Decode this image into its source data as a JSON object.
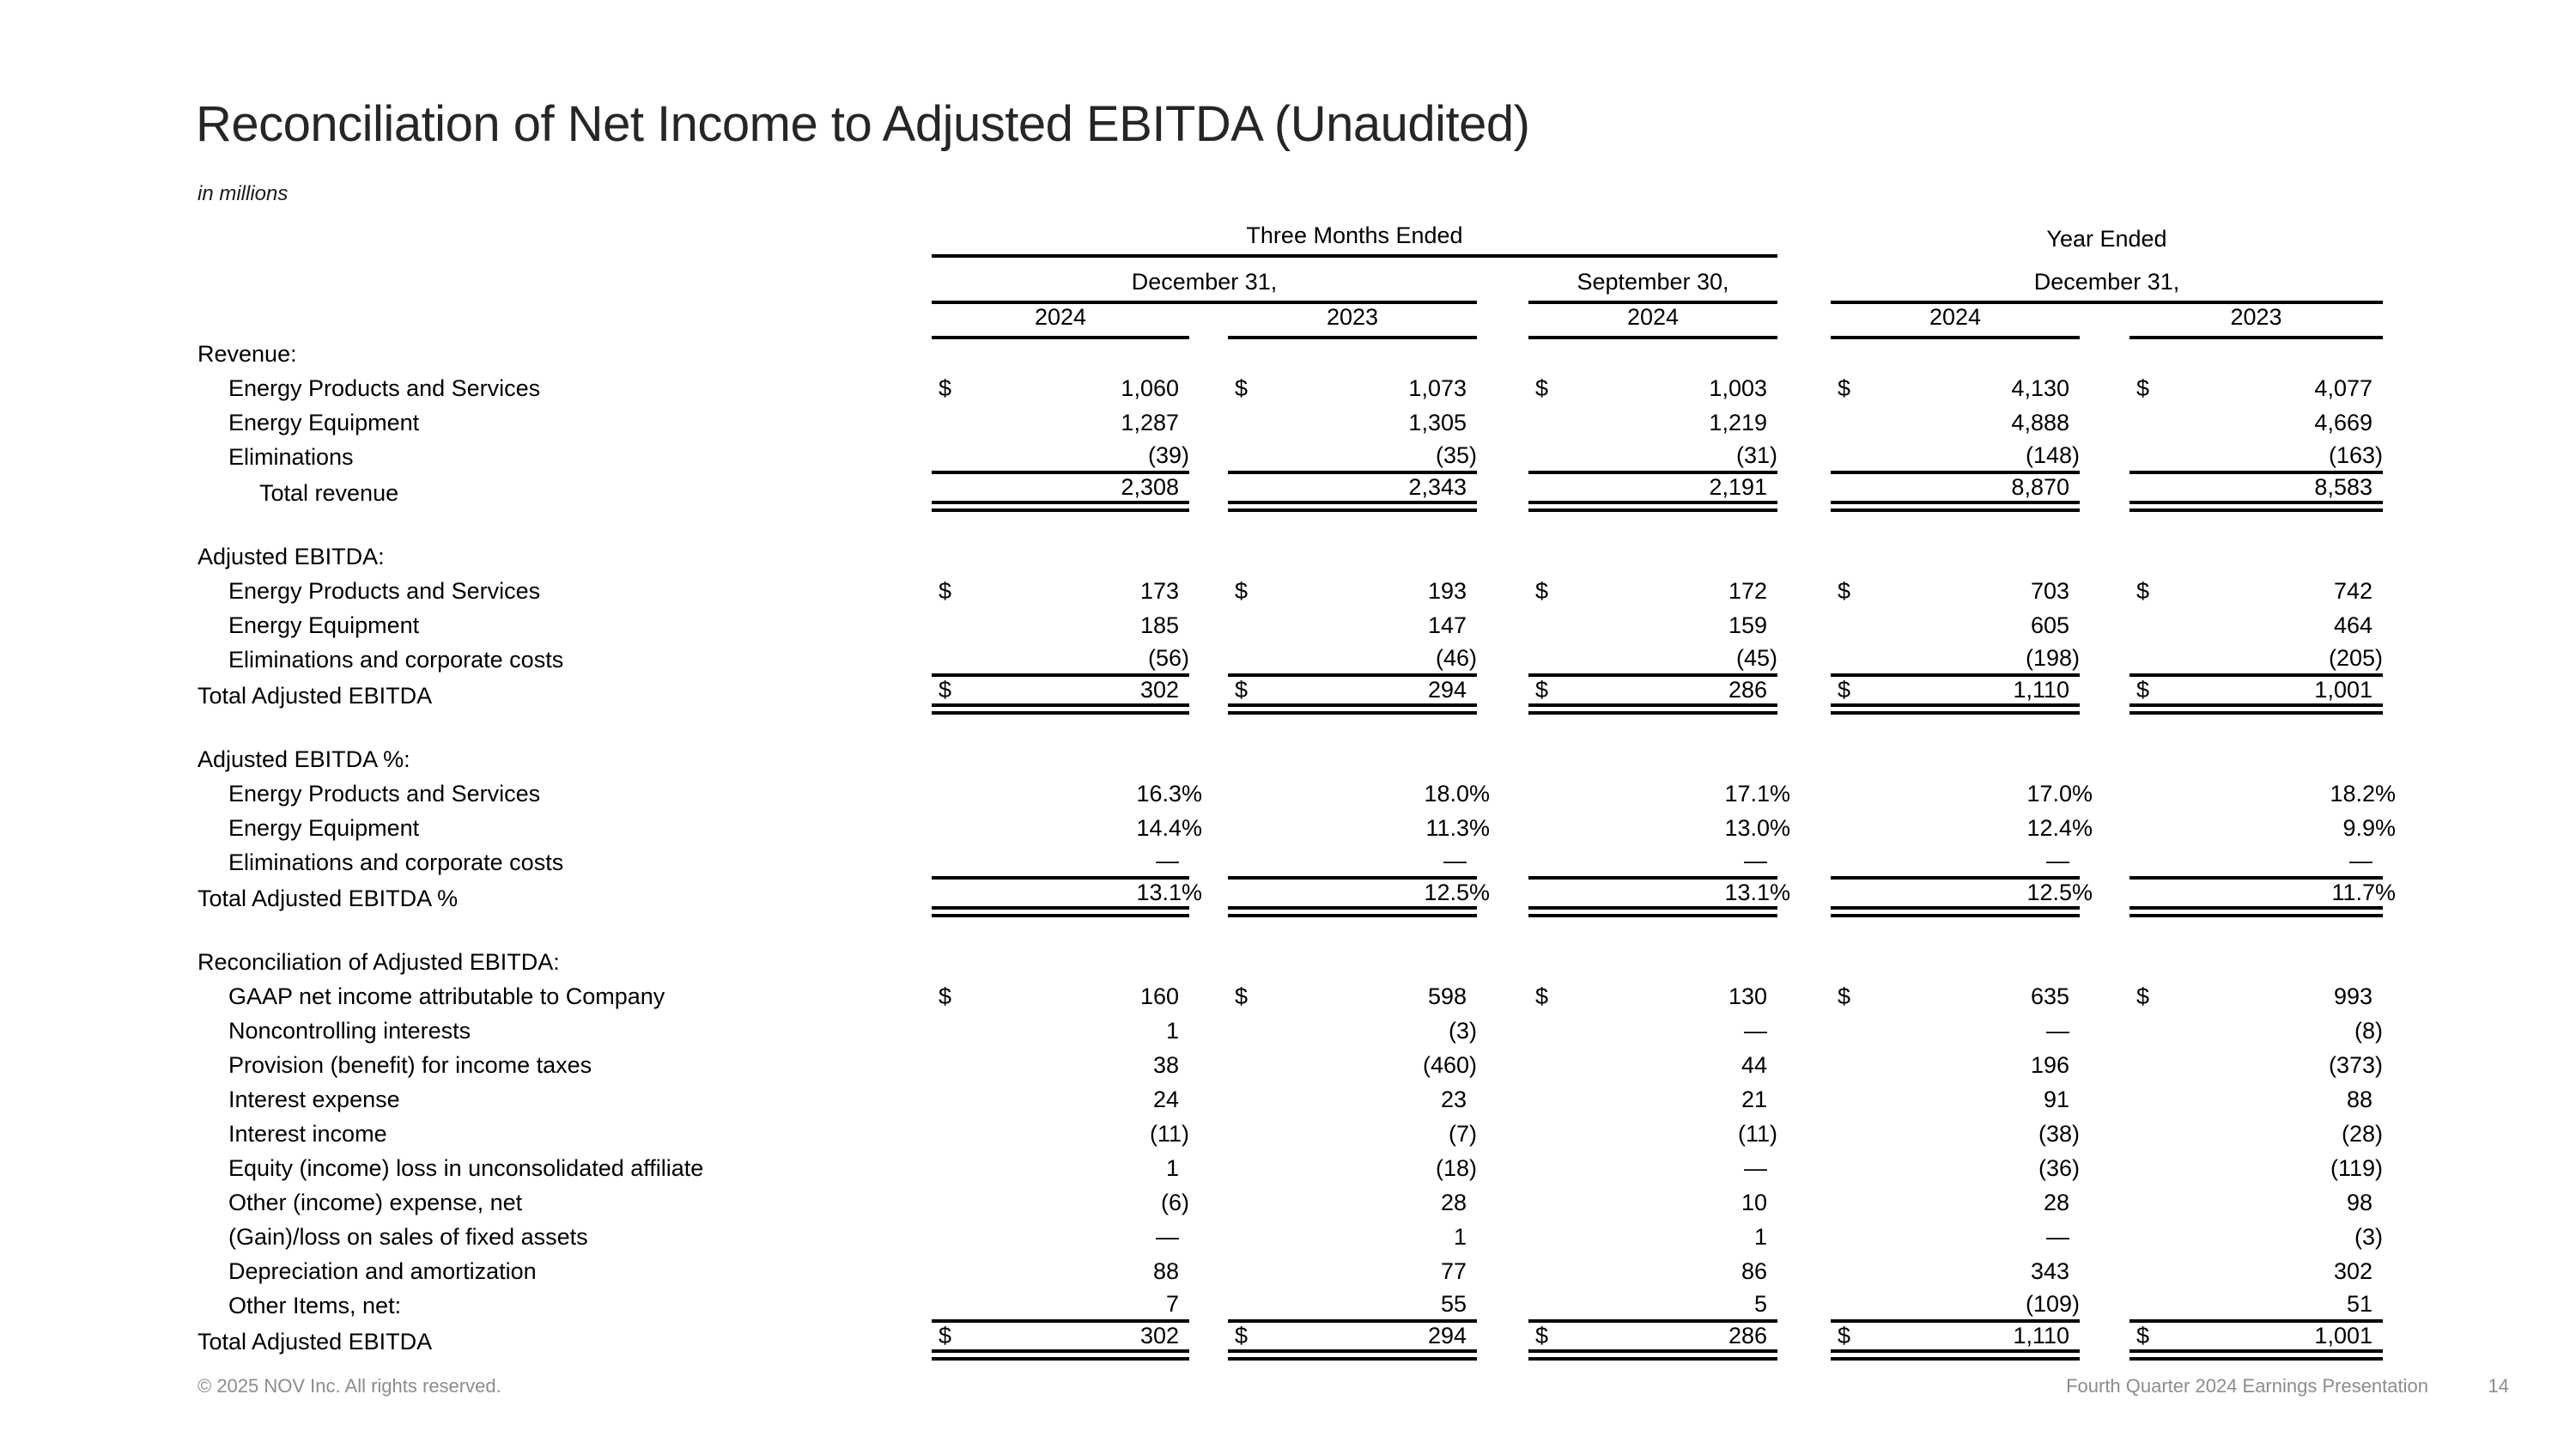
{
  "title": "Reconciliation of Net Income to Adjusted EBITDA (Unaudited)",
  "unit_note": "in millions",
  "header": {
    "group_three_months": "Three Months Ended",
    "group_year_ended": "Year Ended",
    "sub_dec31_quarters": "December 31,",
    "sub_sep30": "September 30,",
    "sub_dec31_years": "December 31,",
    "years": [
      "2024",
      "2023",
      "2024",
      "2024",
      "2023"
    ]
  },
  "table": {
    "sections": [
      {
        "heading": "Revenue:",
        "rows": [
          {
            "label": "Energy Products and Services",
            "indent": 1,
            "dollar": true,
            "values": [
              "1,060",
              "1,073",
              "1,003",
              "4,130",
              "4,077"
            ]
          },
          {
            "label": "Energy Equipment",
            "indent": 1,
            "dollar": false,
            "values": [
              "1,287",
              "1,305",
              "1,219",
              "4,888",
              "4,669"
            ]
          },
          {
            "label": "Eliminations",
            "indent": 1,
            "dollar": false,
            "rule_below": true,
            "values": [
              "(39)",
              "(35)",
              "(31)",
              "(148)",
              "(163)"
            ]
          },
          {
            "label": "Total revenue",
            "indent": 2,
            "dollar": false,
            "total": true,
            "values": [
              "2,308",
              "2,343",
              "2,191",
              "8,870",
              "8,583"
            ]
          }
        ]
      },
      {
        "heading": "Adjusted EBITDA:",
        "rows": [
          {
            "label": "Energy Products and Services",
            "indent": 1,
            "dollar": true,
            "values": [
              "173",
              "193",
              "172",
              "703",
              "742"
            ]
          },
          {
            "label": "Energy Equipment",
            "indent": 1,
            "dollar": false,
            "values": [
              "185",
              "147",
              "159",
              "605",
              "464"
            ]
          },
          {
            "label": "Eliminations and corporate costs",
            "indent": 1,
            "dollar": false,
            "rule_below": true,
            "values": [
              "(56)",
              "(46)",
              "(45)",
              "(198)",
              "(205)"
            ]
          },
          {
            "label": "Total Adjusted EBITDA",
            "indent": 0,
            "dollar": true,
            "total": true,
            "values": [
              "302",
              "294",
              "286",
              "1,110",
              "1,001"
            ]
          }
        ]
      },
      {
        "heading": "Adjusted EBITDA %:",
        "rows": [
          {
            "label": "Energy Products and Services",
            "indent": 1,
            "dollar": false,
            "values": [
              "16.3%",
              "18.0%",
              "17.1%",
              "17.0%",
              "18.2%"
            ]
          },
          {
            "label": "Energy Equipment",
            "indent": 1,
            "dollar": false,
            "values": [
              "14.4%",
              "11.3%",
              "13.0%",
              "12.4%",
              "9.9%"
            ]
          },
          {
            "label": "Eliminations and corporate costs",
            "indent": 1,
            "dollar": false,
            "rule_below": true,
            "values": [
              "—",
              "—",
              "—",
              "—",
              "—"
            ]
          },
          {
            "label": "Total Adjusted EBITDA %",
            "indent": 0,
            "dollar": false,
            "total": true,
            "values": [
              "13.1%",
              "12.5%",
              "13.1%",
              "12.5%",
              "11.7%"
            ]
          }
        ]
      },
      {
        "heading": "Reconciliation of Adjusted EBITDA:",
        "rows": [
          {
            "label": "GAAP net income attributable to Company",
            "indent": 1,
            "dollar": true,
            "values": [
              "160",
              "598",
              "130",
              "635",
              "993"
            ]
          },
          {
            "label": "Noncontrolling interests",
            "indent": 1,
            "dollar": false,
            "values": [
              "1",
              "(3)",
              "—",
              "—",
              "(8)"
            ]
          },
          {
            "label": "Provision (benefit) for income taxes",
            "indent": 1,
            "dollar": false,
            "values": [
              "38",
              "(460)",
              "44",
              "196",
              "(373)"
            ]
          },
          {
            "label": "Interest expense",
            "indent": 1,
            "dollar": false,
            "values": [
              "24",
              "23",
              "21",
              "91",
              "88"
            ]
          },
          {
            "label": "Interest income",
            "indent": 1,
            "dollar": false,
            "values": [
              "(11)",
              "(7)",
              "(11)",
              "(38)",
              "(28)"
            ]
          },
          {
            "label": "Equity (income) loss in unconsolidated affiliate",
            "indent": 1,
            "dollar": false,
            "values": [
              "1",
              "(18)",
              "—",
              "(36)",
              "(119)"
            ]
          },
          {
            "label": "Other (income) expense, net",
            "indent": 1,
            "dollar": false,
            "values": [
              "(6)",
              "28",
              "10",
              "28",
              "98"
            ]
          },
          {
            "label": "(Gain)/loss on sales of fixed assets",
            "indent": 1,
            "dollar": false,
            "values": [
              "—",
              "1",
              "1",
              "—",
              "(3)"
            ]
          },
          {
            "label": "Depreciation and amortization",
            "indent": 1,
            "dollar": false,
            "values": [
              "88",
              "77",
              "86",
              "343",
              "302"
            ]
          },
          {
            "label": "Other Items, net:",
            "indent": 1,
            "dollar": false,
            "rule_below": true,
            "values": [
              "7",
              "55",
              "5",
              "(109)",
              "51"
            ]
          },
          {
            "label": "Total Adjusted EBITDA",
            "indent": 0,
            "dollar": true,
            "total": true,
            "values": [
              "302",
              "294",
              "286",
              "1,110",
              "1,001"
            ]
          }
        ]
      }
    ]
  },
  "footer": {
    "left": "© 2025 NOV Inc. All rights reserved.",
    "right": "Fourth Quarter 2024 Earnings Presentation",
    "page": "14"
  }
}
